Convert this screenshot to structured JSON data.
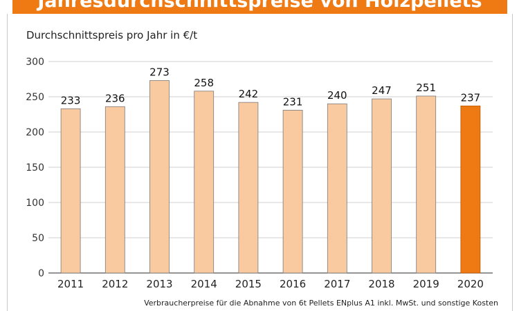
{
  "title": "Jahresdurchschnittspreise von Holzpellets",
  "colors": {
    "accent": "#ef7a14",
    "bar": "#f9c9a0",
    "bar_stroke": "#7a7a7a",
    "highlight": "#ef7a14"
  },
  "chart_data": {
    "type": "bar",
    "title": "Durchschnittspreis pro Jahr in €/t",
    "xlabel": "",
    "ylabel": "",
    "categories": [
      "2011",
      "2012",
      "2013",
      "2014",
      "2015",
      "2016",
      "2017",
      "2018",
      "2019",
      "2020"
    ],
    "values": [
      233,
      236,
      273,
      258,
      242,
      231,
      240,
      247,
      251,
      237
    ],
    "highlight_category": "2020",
    "ylim": [
      0,
      300
    ],
    "yticks": [
      0,
      50,
      100,
      150,
      200,
      250,
      300
    ],
    "grid": true,
    "data_labels": true
  },
  "footnote": "Verbraucherpreise für die Abnahme von 6t Pellets ENplus A1 inkl. MwSt. und sonstige Kosten"
}
